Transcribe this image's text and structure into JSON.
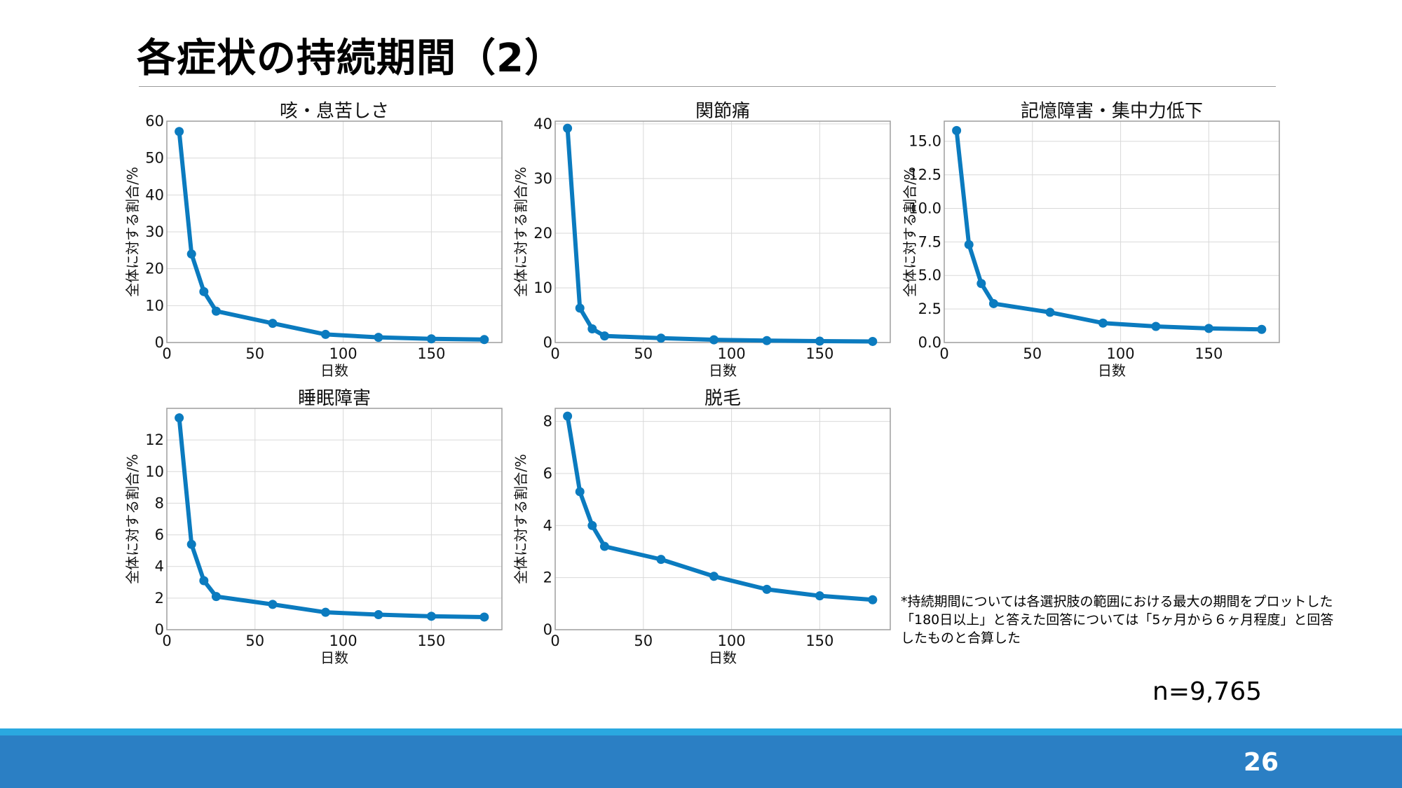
{
  "slide": {
    "title": "各症状の持続期間（2）",
    "footnote": [
      "*持続期間については各選択肢の範囲における最大の期間をプロットした",
      "「180日以上」と答えた回答については「5ヶ月から６ヶ月程度」と回答",
      "したものと合算した"
    ],
    "sample_size": "n=9,765",
    "page_number": "26",
    "colors": {
      "line": "#0b7bbf",
      "footer": "#2b7fc4",
      "footer_stripe": "#2aa8e0"
    }
  },
  "chart_data": [
    {
      "type": "line",
      "title": "咳・息苦しさ",
      "xlabel": "日数",
      "ylabel": "全体に対する割合/%",
      "x": [
        7,
        14,
        21,
        28,
        60,
        90,
        120,
        150,
        180
      ],
      "series": [
        {
          "values": [
            57.2,
            24.0,
            13.8,
            8.5,
            5.2,
            2.2,
            1.4,
            1.0,
            0.8
          ]
        }
      ],
      "xlim": [
        0,
        190
      ],
      "ylim": [
        0,
        60
      ],
      "xticks": [
        0,
        50,
        100,
        150
      ],
      "yticks": [
        0,
        10,
        20,
        30,
        40,
        50,
        60
      ],
      "xtick_labels": [
        "0",
        "50",
        "100",
        "150"
      ],
      "ytick_labels": [
        "0",
        "10",
        "20",
        "30",
        "40",
        "50",
        "60"
      ],
      "grid": true
    },
    {
      "type": "line",
      "title": "関節痛",
      "xlabel": "日数",
      "ylabel": "全体に対する割合/%",
      "x": [
        7,
        14,
        21,
        28,
        60,
        90,
        120,
        150,
        180
      ],
      "series": [
        {
          "values": [
            39.2,
            6.3,
            2.5,
            1.2,
            0.8,
            0.5,
            0.35,
            0.25,
            0.2
          ]
        }
      ],
      "xlim": [
        0,
        190
      ],
      "ylim": [
        0,
        40.5
      ],
      "xticks": [
        0,
        50,
        100,
        150
      ],
      "yticks": [
        0,
        10,
        20,
        30,
        40
      ],
      "xtick_labels": [
        "0",
        "50",
        "100",
        "150"
      ],
      "ytick_labels": [
        "0",
        "10",
        "20",
        "30",
        "40"
      ],
      "grid": true
    },
    {
      "type": "line",
      "title": "記憶障害・集中力低下",
      "xlabel": "日数",
      "ylabel": "全体に対する割合/%",
      "x": [
        7,
        14,
        21,
        28,
        60,
        90,
        120,
        150,
        180
      ],
      "series": [
        {
          "values": [
            15.8,
            7.3,
            4.4,
            2.9,
            2.25,
            1.45,
            1.2,
            1.05,
            0.98
          ]
        }
      ],
      "xlim": [
        0,
        190
      ],
      "ylim": [
        0,
        16.5
      ],
      "xticks": [
        0,
        50,
        100,
        150
      ],
      "yticks": [
        0,
        2.5,
        5,
        7.5,
        10,
        12.5,
        15
      ],
      "xtick_labels": [
        "0",
        "50",
        "100",
        "150"
      ],
      "ytick_labels": [
        "0.0",
        "2.5",
        "5.0",
        "7.5",
        "10.0",
        "12.5",
        "15.0"
      ],
      "grid": true
    },
    {
      "type": "line",
      "title": "睡眠障害",
      "xlabel": "日数",
      "ylabel": "全体に対する割合/%",
      "x": [
        7,
        14,
        21,
        28,
        60,
        90,
        120,
        150,
        180
      ],
      "series": [
        {
          "values": [
            13.4,
            5.4,
            3.1,
            2.1,
            1.6,
            1.1,
            0.95,
            0.85,
            0.8
          ]
        }
      ],
      "xlim": [
        0,
        190
      ],
      "ylim": [
        0,
        14
      ],
      "xticks": [
        0,
        50,
        100,
        150
      ],
      "yticks": [
        0,
        2,
        4,
        6,
        8,
        10,
        12
      ],
      "xtick_labels": [
        "0",
        "50",
        "100",
        "150"
      ],
      "ytick_labels": [
        "0",
        "2",
        "4",
        "6",
        "8",
        "10",
        "12"
      ],
      "grid": true
    },
    {
      "type": "line",
      "title": "脱毛",
      "xlabel": "日数",
      "ylabel": "全体に対する割合/%",
      "x": [
        7,
        14,
        21,
        28,
        60,
        90,
        120,
        150,
        180
      ],
      "series": [
        {
          "values": [
            8.2,
            5.3,
            4.0,
            3.2,
            2.7,
            2.05,
            1.55,
            1.3,
            1.15
          ]
        }
      ],
      "xlim": [
        0,
        190
      ],
      "ylim": [
        0,
        8.5
      ],
      "xticks": [
        0,
        50,
        100,
        150
      ],
      "yticks": [
        0,
        2,
        4,
        6,
        8
      ],
      "xtick_labels": [
        "0",
        "50",
        "100",
        "150"
      ],
      "ytick_labels": [
        "0",
        "2",
        "4",
        "6",
        "8"
      ],
      "grid": true
    }
  ]
}
